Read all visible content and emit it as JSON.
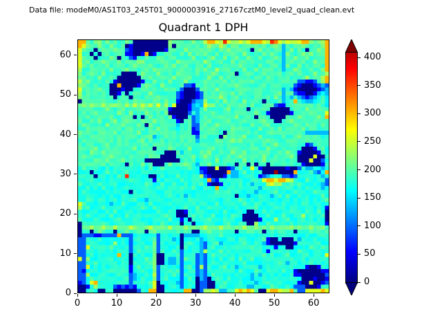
{
  "header": {
    "data_file_label": "Data file: modeM0/AS1T03_245T01_9000003916_27167cztM0_level2_quad_clean.evt"
  },
  "chart_data": {
    "type": "heatmap",
    "title": "Quadrant 1 DPH",
    "xlabel": "",
    "ylabel": "",
    "x_range": [
      0,
      64
    ],
    "y_range": [
      0,
      64
    ],
    "x_ticks": [
      0,
      10,
      20,
      30,
      40,
      50,
      60
    ],
    "y_ticks": [
      0,
      10,
      20,
      30,
      40,
      50,
      60
    ],
    "grid_size": 64,
    "colormap": "jet",
    "value_scale": {
      "vmin": 0,
      "vmax": 437
    },
    "colorbar": {
      "ticks": [
        0,
        50,
        100,
        150,
        200,
        250,
        300,
        350,
        400
      ],
      "tick_max_value": 410,
      "extend": "both",
      "position": "right",
      "extend_max_color": "#7f0000",
      "extend_min_color": "#00007f"
    },
    "grid_encoding": {
      "0": 5,
      "1": 55,
      "2": 95,
      "3": 135,
      "4": 155,
      "5": 175,
      "6": 190,
      "7": 210,
      "8": 235,
      "9": 260,
      "a": 305,
      "b": 330,
      "c": 365,
      "d": 425
    },
    "grid_rows_top_to_bottom": [
      "aa7678676766760000000008767667678aa98c988989aaa98cb989889aa8778a",
      "a97667667667010000000007076766767877876776776767677637676776767a",
      "976606766766210000000016766766676766767667660676766736767606676a",
      "96606067667611001a016667667676667667666766766667676637666767667a",
      "976606667606621667667666766667666776676676676676667636676676666a",
      "967666766676666776666766676676668666766766667666766636766766766a",
      "976766676667667666766676766766666766676667666676667637667666676a",
      "866676667666766667676667667666767668667666766766676636676667667a",
      "7667667666600006766676666766667666766667066766676667667676667668",
      "776667666600000066766766766676666766766666666766766667666686668a",
      "867666676100000016676667666766667666676667667666666666662211268a",
      "8766766600a00001676667666672216666766676766666676666666210001232",
      "9666676600010066766666766620002676676666667666766666363100000123",
      "8676667600160676667666666210001266667667676667666667366211001343",
      "8766666660666066676676666210001266768666766666766676363632123464",
      "0767667666766676666766766100023386666766667666606667366a64334664",
      "7878778778778787878797869000134397767676676676666621166666666664",
      "6676666766676666766667610000133676666676666066666000006666766666",
      "6766766666766766676666700000263666766666666667661000001666676669",
      "667667667666660606766667100062367666766676666066600006667666676a",
      "7666676667667666766766666106623667666676667666676600667666667666",
      "6766666766676667607667666466622676676666666676667666666766766676",
      "6676766666666766766676666466612666766667676666766667666667666666",
      "7666667667666667666766766666611666766066666766666766666666333333",
      "6667666676667666667366766666662676660766667666766666766676666655",
      "6766676666766666766667666666663666676667676666667666667666676656",
      "6676666766667666676666666667666676666676666676666676666666126665",
      "7666766667666676666066676666766666766666666667667666666660001665",
      "6667667666766666766666000646666767666667667666666666676610000165",
      "6766666676666766667660000666676676666676676666676666667600009005",
      "6666766766676666600000000066664666676666667666676766666600090025",
      "6676667666660666766000676667663667666666066060660666666661000016",
      "5655655655655565556556556555655110090012565595100000010025335535",
      "55605556565565556555565555565552100000a33565555000d0000a5556325a",
      "565505655565c556550056555655565821000153355655123555221256555535",
      "555655556555565555515565556555655a21556565555659aa9aa98555655652",
      "6555565556555565565556556556555651001555565535558988556565556532",
      "55655565555655556555655555655655655a5556555565355655565555655535",
      "5655555655555055556555565655556555565565655553555565555656556555",
      "5556556565556555555655565563556556555655055355655356565565555565",
      "5565565556555565535565556555655655655565565565556555565555655556",
      "9655565535565556556555655655565565565555556556556555655556555655",
      "8565556555655556655655555556556556556555655556555565556555565551",
      "6556555656555655555565555001556565555655555005565655556555655650",
      "5565565565556555565555655000565555655556550000556555655558555560",
      "6555655555655565555655565515055656555655550000155585565556555650",
      "0655556555565555655556555505505555655565565008556555556555656551",
      "0778778778777877778777787778777787778777778778777877778777787775",
      "0660676660667666606766666666600667666666066666606666666066666666",
      "0222112222a22255555625555503333556556555555565555655565555655565",
      "2255565555565255555725553505555355655565565555561005000535556555",
      "2255655558555255655725565505655325563555556556531000000156555655",
      "2295556565555255565725655506555325655556655565555515500555565565",
      "2255565555655256556726556525565385556555565555651555655565556555",
      "2256555555a55055655700555625652325655655555655565655565555655559",
      "9285565565565055565700533526552325556556565565556555556556556555",
      "2255655655556055556700533525562325655565556555565556535555565655",
      "2295556556555156555725655525652826555655355655355565555555100155",
      "2155655565565155655725565625552325565556565556556555655100000011",
      "2285565555655235565825556526552325655555555535355655556110000002",
      "2256555656556235655825655525650320565565555535565565555550001001",
      "1259a55555655255556905565325550220055655565553556556555510090012",
      "0015855552121215555900555525550220056555555335555655565222000155",
      "006650066000000255aa0055555aa002889833669a9a96009aa988a6229999a9"
    ]
  },
  "colors": {
    "figure_background": "#ffffff",
    "text": "#000000",
    "axes_spine": "#000000"
  }
}
